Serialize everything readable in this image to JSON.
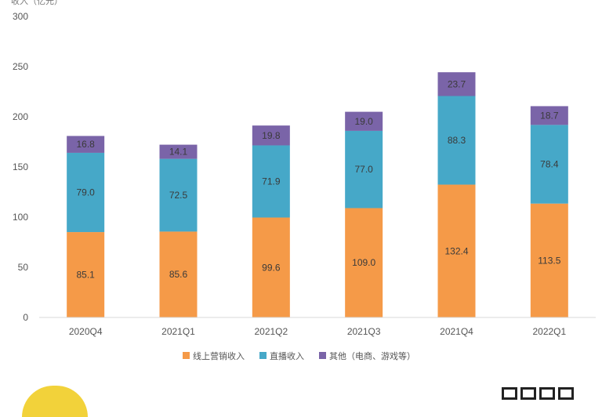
{
  "chart_data": {
    "type": "bar",
    "stacked": true,
    "ylabel": "收入（亿元）",
    "ylim": [
      0,
      300
    ],
    "yticks": [
      0,
      50,
      100,
      150,
      200,
      250,
      300
    ],
    "grid": false,
    "legend_position": "bottom",
    "categories": [
      "2020Q4",
      "2021Q1",
      "2021Q2",
      "2021Q3",
      "2021Q4",
      "2022Q1"
    ],
    "series": [
      {
        "name": "线上营销收入",
        "color": "#f59a48",
        "values": [
          85.1,
          85.6,
          99.6,
          109.0,
          132.4,
          113.5
        ]
      },
      {
        "name": "直播收入",
        "color": "#46a8c8",
        "values": [
          79.0,
          72.5,
          71.9,
          77.0,
          88.3,
          78.4
        ]
      },
      {
        "name": "其他（电商、游戏等）",
        "color": "#7a64a8",
        "values": [
          16.8,
          14.1,
          19.8,
          19.0,
          23.7,
          18.7
        ]
      }
    ],
    "value_labels": [
      [
        "85.1",
        "85.6",
        "99.6",
        "109.0",
        "132.4",
        "113.5"
      ],
      [
        "79.0",
        "72.5",
        "71.9",
        "77.0",
        "88.3",
        "78.4"
      ],
      [
        "16.8",
        "14.1",
        "19.8",
        "19.0",
        "23.7",
        "18.7"
      ]
    ]
  }
}
